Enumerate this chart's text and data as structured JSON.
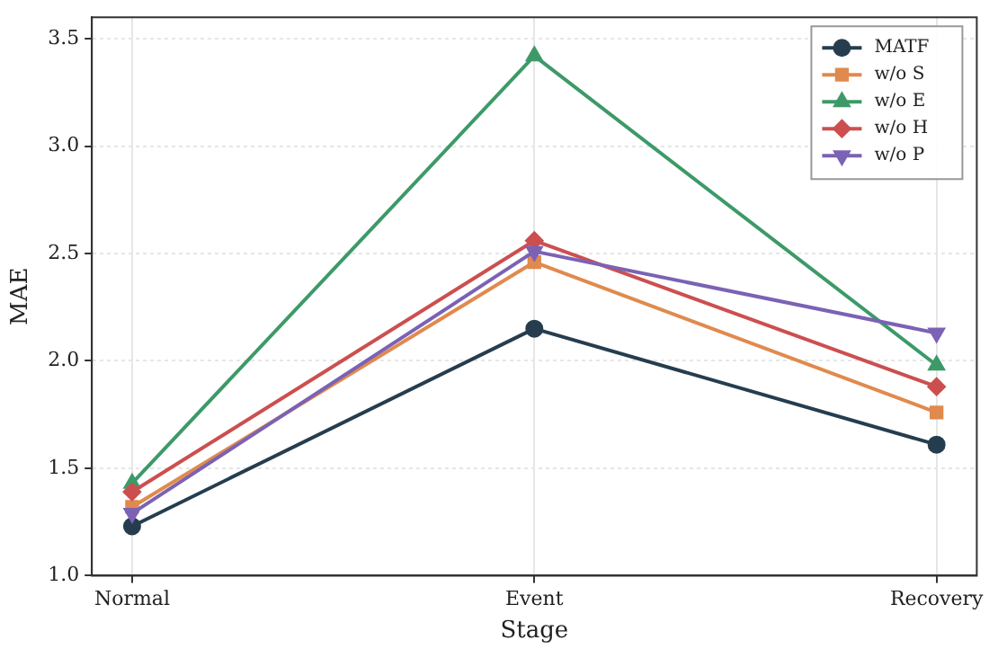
{
  "chart_data": {
    "type": "line",
    "xlabel": "Stage",
    "ylabel": "MAE",
    "categories": [
      "Normal",
      "Event",
      "Recovery"
    ],
    "series": [
      {
        "name": "MATF",
        "color": "#253d4f",
        "marker": "circle",
        "values": [
          1.23,
          2.15,
          1.61
        ]
      },
      {
        "name": "w/o S",
        "color": "#e08a4e",
        "marker": "square",
        "values": [
          1.32,
          2.46,
          1.76
        ]
      },
      {
        "name": "w/o E",
        "color": "#3d9a68",
        "marker": "triangle",
        "values": [
          1.43,
          3.42,
          1.98
        ]
      },
      {
        "name": "w/o H",
        "color": "#cc4f50",
        "marker": "diamond",
        "values": [
          1.39,
          2.56,
          1.88
        ]
      },
      {
        "name": "w/o P",
        "color": "#7b62b4",
        "marker": "triangle-down",
        "values": [
          1.29,
          2.51,
          2.13
        ]
      }
    ],
    "ylim": [
      1.0,
      3.6
    ],
    "yticks": [
      {
        "value": 1.0,
        "label": "1.0"
      },
      {
        "value": 1.5,
        "label": "1.5"
      },
      {
        "value": 2.0,
        "label": "2.0"
      },
      {
        "value": 2.5,
        "label": "2.5"
      },
      {
        "value": 3.0,
        "label": "3.0"
      },
      {
        "value": 3.5,
        "label": "3.5"
      }
    ],
    "grid": true,
    "legend": "top right",
    "line_style": "solid"
  }
}
